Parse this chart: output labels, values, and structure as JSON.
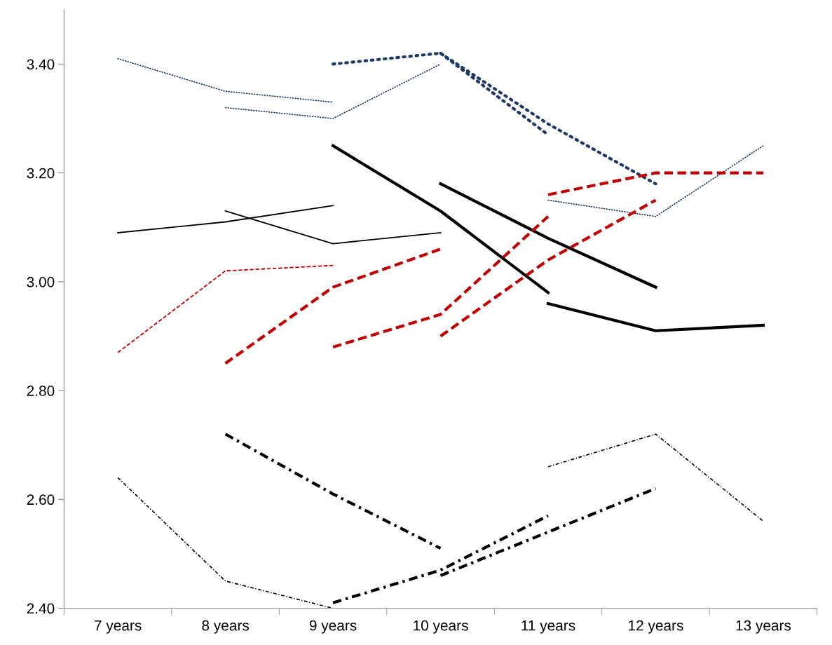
{
  "chart_data": {
    "type": "line",
    "categories": [
      "7 years",
      "8 years",
      "9 years",
      "10 years",
      "11 years",
      "12 years",
      "13 years"
    ],
    "ylim": [
      2.4,
      3.5
    ],
    "yticks": [
      {
        "value": 2.4,
        "label": "2.40"
      },
      {
        "value": 2.6,
        "label": "2.60"
      },
      {
        "value": 2.8,
        "label": "2.80"
      },
      {
        "value": 3.0,
        "label": "3.00"
      },
      {
        "value": 3.2,
        "label": "3.20"
      },
      {
        "value": 3.4,
        "label": "3.40"
      }
    ],
    "grid": false,
    "marker": "none",
    "series": [
      {
        "color": "#1f3864",
        "line_style": "dotted",
        "values": [
          3.41,
          3.35,
          3.33,
          null,
          null,
          null,
          null
        ]
      },
      {
        "color": "#1f3864",
        "line_style": "dotted",
        "values": [
          null,
          3.32,
          3.3,
          3.4,
          null,
          null,
          null
        ]
      },
      {
        "color": "#1f3864",
        "line_style": "dotted",
        "values": [
          null,
          null,
          3.4,
          3.42,
          3.27,
          null,
          null
        ]
      },
      {
        "color": "#1f3864",
        "line_style": "dotted",
        "values": [
          null,
          null,
          null,
          3.42,
          3.29,
          3.18,
          null
        ]
      },
      {
        "color": "#1f3864",
        "line_style": "dotted",
        "values": [
          null,
          null,
          null,
          null,
          3.15,
          3.12,
          3.25
        ]
      },
      {
        "color": "#000000",
        "line_style": "solid",
        "values": [
          3.09,
          3.11,
          3.14,
          null,
          null,
          null,
          null
        ]
      },
      {
        "color": "#000000",
        "line_style": "solid",
        "values": [
          null,
          3.13,
          3.07,
          3.09,
          null,
          null,
          null
        ]
      },
      {
        "color": "#000000",
        "line_style": "solid",
        "values": [
          null,
          null,
          3.25,
          3.13,
          2.98,
          null,
          null
        ]
      },
      {
        "color": "#000000",
        "line_style": "solid",
        "values": [
          null,
          null,
          null,
          3.18,
          3.08,
          2.99,
          null
        ]
      },
      {
        "color": "#000000",
        "line_style": "solid",
        "values": [
          null,
          null,
          null,
          null,
          2.96,
          2.91,
          2.92
        ]
      },
      {
        "color": "#c00000",
        "line_style": "dashed",
        "values": [
          2.87,
          3.02,
          3.03,
          null,
          null,
          null,
          null
        ]
      },
      {
        "color": "#c00000",
        "line_style": "dashed",
        "values": [
          null,
          2.85,
          2.99,
          3.06,
          null,
          null,
          null
        ]
      },
      {
        "color": "#c00000",
        "line_style": "dashed",
        "values": [
          null,
          null,
          2.88,
          2.94,
          3.12,
          null,
          null
        ]
      },
      {
        "color": "#c00000",
        "line_style": "dashed",
        "values": [
          null,
          null,
          null,
          2.9,
          3.04,
          3.15,
          null
        ]
      },
      {
        "color": "#c00000",
        "line_style": "dashed",
        "values": [
          null,
          null,
          null,
          null,
          3.16,
          3.2,
          3.2
        ]
      },
      {
        "color": "#000000",
        "line_style": "dashdot",
        "values": [
          2.64,
          2.45,
          2.4,
          null,
          null,
          null,
          null
        ]
      },
      {
        "color": "#000000",
        "line_style": "dashdot",
        "values": [
          null,
          2.72,
          2.61,
          2.51,
          null,
          null,
          null
        ]
      },
      {
        "color": "#000000",
        "line_style": "dashdot",
        "values": [
          null,
          null,
          2.41,
          2.47,
          2.57,
          null,
          null
        ]
      },
      {
        "color": "#000000",
        "line_style": "dashdot",
        "values": [
          null,
          null,
          null,
          2.46,
          2.54,
          2.62,
          null
        ]
      },
      {
        "color": "#000000",
        "line_style": "dashdot",
        "values": [
          null,
          null,
          null,
          null,
          2.66,
          2.72,
          2.56
        ]
      }
    ]
  }
}
